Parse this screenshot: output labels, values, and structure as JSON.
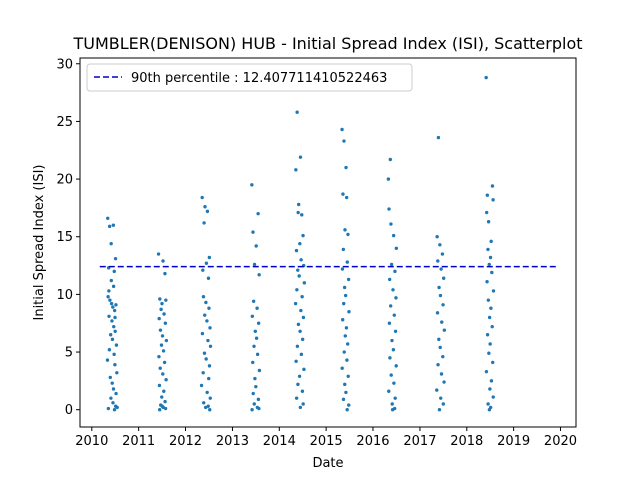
{
  "chart_data": {
    "type": "scatter",
    "title": "TUMBLER(DENISON) HUB - Initial Spread Index (ISI), Scatterplot",
    "xlabel": "Date",
    "ylabel": "Initial Spread Index (ISI)",
    "xlim": [
      "2009-10-01",
      "2020-05-01"
    ],
    "ylim": [
      -1.5,
      30.5
    ],
    "x_ticks": [
      "2010",
      "2011",
      "2012",
      "2013",
      "2014",
      "2015",
      "2016",
      "2017",
      "2018",
      "2019",
      "2020"
    ],
    "y_ticks": [
      "0",
      "5",
      "10",
      "15",
      "20",
      "25",
      "30"
    ],
    "grid": false,
    "legend_position": "top-left",
    "percentile_line": {
      "label": "90th percentile : 12.407711410522463",
      "value": 12.407711410522463,
      "style": "dashed",
      "color": "#0000cc"
    },
    "series": [
      {
        "color": "#1f77b4",
        "points": [
          [
            "2010-05-05",
            16.6
          ],
          [
            "2010-05-20",
            15.9
          ],
          [
            "2010-06-01",
            14.4
          ],
          [
            "2010-06-18",
            16.0
          ],
          [
            "2010-07-05",
            13.1
          ],
          [
            "2010-05-12",
            12.3
          ],
          [
            "2010-06-25",
            12.0
          ],
          [
            "2010-05-08",
            9.8
          ],
          [
            "2010-05-22",
            9.5
          ],
          [
            "2010-06-04",
            9.2
          ],
          [
            "2010-06-14",
            8.9
          ],
          [
            "2010-06-28",
            8.6
          ],
          [
            "2010-07-08",
            9.1
          ],
          [
            "2010-05-15",
            8.1
          ],
          [
            "2010-06-07",
            7.7
          ],
          [
            "2010-06-21",
            7.2
          ],
          [
            "2010-07-02",
            6.8
          ],
          [
            "2010-05-28",
            6.5
          ],
          [
            "2010-06-11",
            6.1
          ],
          [
            "2010-07-12",
            5.6
          ],
          [
            "2010-05-18",
            5.2
          ],
          [
            "2010-06-24",
            4.8
          ],
          [
            "2010-05-03",
            4.3
          ],
          [
            "2010-06-30",
            3.9
          ],
          [
            "2010-07-15",
            3.2
          ],
          [
            "2010-05-25",
            2.8
          ],
          [
            "2010-06-09",
            2.3
          ],
          [
            "2010-06-19",
            1.8
          ],
          [
            "2010-07-09",
            1.4
          ],
          [
            "2010-05-30",
            1.0
          ],
          [
            "2010-06-15",
            0.6
          ],
          [
            "2010-07-06",
            0.3
          ],
          [
            "2010-05-10",
            0.1
          ],
          [
            "2010-06-27",
            0.0
          ],
          [
            "2010-07-18",
            0.2
          ],
          [
            "2010-06-02",
            11.2
          ],
          [
            "2010-06-20",
            10.7
          ],
          [
            "2010-05-14",
            10.3
          ],
          [
            "2010-07-01",
            8.0
          ],
          [
            "2011-06-05",
            13.5
          ],
          [
            "2011-07-10",
            12.9
          ],
          [
            "2011-07-25",
            11.8
          ],
          [
            "2011-06-15",
            9.6
          ],
          [
            "2011-07-02",
            9.2
          ],
          [
            "2011-08-01",
            9.5
          ],
          [
            "2011-06-25",
            8.7
          ],
          [
            "2011-07-18",
            8.3
          ],
          [
            "2011-06-10",
            7.9
          ],
          [
            "2011-07-28",
            7.5
          ],
          [
            "2011-06-20",
            6.9
          ],
          [
            "2011-07-06",
            6.4
          ],
          [
            "2011-08-05",
            6.0
          ],
          [
            "2011-06-28",
            5.6
          ],
          [
            "2011-07-14",
            5.1
          ],
          [
            "2011-06-08",
            4.6
          ],
          [
            "2011-07-22",
            4.1
          ],
          [
            "2011-06-18",
            3.6
          ],
          [
            "2011-07-08",
            3.1
          ],
          [
            "2011-08-03",
            2.6
          ],
          [
            "2011-06-12",
            2.1
          ],
          [
            "2011-07-16",
            1.6
          ],
          [
            "2011-06-30",
            1.1
          ],
          [
            "2011-07-26",
            0.7
          ],
          [
            "2011-06-22",
            0.4
          ],
          [
            "2011-07-12",
            0.2
          ],
          [
            "2011-06-14",
            0.0
          ],
          [
            "2011-07-30",
            0.1
          ],
          [
            "2011-07-04",
            0.3
          ],
          [
            "2012-05-10",
            18.4
          ],
          [
            "2012-06-01",
            17.6
          ],
          [
            "2012-06-20",
            17.2
          ],
          [
            "2012-05-25",
            16.2
          ],
          [
            "2012-07-05",
            13.2
          ],
          [
            "2012-06-12",
            12.7
          ],
          [
            "2012-05-15",
            12.1
          ],
          [
            "2012-06-28",
            11.4
          ],
          [
            "2012-05-20",
            9.8
          ],
          [
            "2012-06-08",
            9.3
          ],
          [
            "2012-07-02",
            8.8
          ],
          [
            "2012-05-30",
            8.2
          ],
          [
            "2012-06-16",
            7.7
          ],
          [
            "2012-07-10",
            7.1
          ],
          [
            "2012-05-12",
            6.6
          ],
          [
            "2012-06-24",
            6.0
          ],
          [
            "2012-07-14",
            5.5
          ],
          [
            "2012-05-28",
            4.9
          ],
          [
            "2012-06-10",
            4.4
          ],
          [
            "2012-07-06",
            3.8
          ],
          [
            "2012-05-18",
            3.2
          ],
          [
            "2012-06-30",
            2.7
          ],
          [
            "2012-05-05",
            2.1
          ],
          [
            "2012-06-18",
            1.5
          ],
          [
            "2012-07-12",
            1.0
          ],
          [
            "2012-05-22",
            0.6
          ],
          [
            "2012-06-06",
            0.2
          ],
          [
            "2012-07-08",
            0.0
          ],
          [
            "2012-06-26",
            0.3
          ],
          [
            "2013-06-01",
            19.5
          ],
          [
            "2013-07-20",
            17.0
          ],
          [
            "2013-06-10",
            15.4
          ],
          [
            "2013-07-05",
            14.2
          ],
          [
            "2013-06-22",
            12.6
          ],
          [
            "2013-07-28",
            11.7
          ],
          [
            "2013-06-15",
            9.4
          ],
          [
            "2013-07-12",
            8.8
          ],
          [
            "2013-06-05",
            8.1
          ],
          [
            "2013-07-24",
            7.5
          ],
          [
            "2013-06-28",
            6.8
          ],
          [
            "2013-07-08",
            6.2
          ],
          [
            "2013-06-18",
            5.5
          ],
          [
            "2013-07-16",
            4.8
          ],
          [
            "2013-06-08",
            4.1
          ],
          [
            "2013-07-30",
            3.4
          ],
          [
            "2013-06-25",
            2.7
          ],
          [
            "2013-07-02",
            2.0
          ],
          [
            "2013-06-12",
            1.4
          ],
          [
            "2013-07-22",
            0.9
          ],
          [
            "2013-06-20",
            0.5
          ],
          [
            "2013-07-14",
            0.2
          ],
          [
            "2013-06-03",
            0.0
          ],
          [
            "2013-07-26",
            0.1
          ],
          [
            "2014-05-20",
            25.8
          ],
          [
            "2014-06-15",
            21.9
          ],
          [
            "2014-05-10",
            20.8
          ],
          [
            "2014-06-01",
            17.8
          ],
          [
            "2014-05-28",
            17.1
          ],
          [
            "2014-06-25",
            16.9
          ],
          [
            "2014-07-05",
            15.1
          ],
          [
            "2014-06-10",
            14.4
          ],
          [
            "2014-05-15",
            13.8
          ],
          [
            "2014-06-20",
            13.0
          ],
          [
            "2014-07-10",
            12.5
          ],
          [
            "2014-05-25",
            12.1
          ],
          [
            "2014-06-05",
            11.6
          ],
          [
            "2014-07-15",
            11.0
          ],
          [
            "2014-05-18",
            10.4
          ],
          [
            "2014-06-28",
            9.8
          ],
          [
            "2014-05-08",
            9.2
          ],
          [
            "2014-06-18",
            8.6
          ],
          [
            "2014-07-08",
            8.0
          ],
          [
            "2014-05-30",
            7.4
          ],
          [
            "2014-06-12",
            6.8
          ],
          [
            "2014-07-02",
            6.1
          ],
          [
            "2014-05-22",
            5.5
          ],
          [
            "2014-06-22",
            4.8
          ],
          [
            "2014-05-12",
            4.2
          ],
          [
            "2014-07-12",
            3.5
          ],
          [
            "2014-06-08",
            2.9
          ],
          [
            "2014-05-26",
            2.2
          ],
          [
            "2014-06-30",
            1.6
          ],
          [
            "2014-05-16",
            1.0
          ],
          [
            "2014-07-06",
            0.5
          ],
          [
            "2014-06-14",
            0.2
          ],
          [
            "2015-05-05",
            24.3
          ],
          [
            "2015-05-20",
            23.3
          ],
          [
            "2015-06-05",
            21.0
          ],
          [
            "2015-05-12",
            18.7
          ],
          [
            "2015-06-10",
            18.4
          ],
          [
            "2015-05-28",
            15.6
          ],
          [
            "2015-06-20",
            15.2
          ],
          [
            "2015-05-15",
            13.9
          ],
          [
            "2015-06-15",
            12.8
          ],
          [
            "2015-05-08",
            12.2
          ],
          [
            "2015-06-25",
            11.3
          ],
          [
            "2015-05-25",
            10.6
          ],
          [
            "2015-06-02",
            9.9
          ],
          [
            "2015-05-18",
            9.2
          ],
          [
            "2015-06-28",
            8.5
          ],
          [
            "2015-05-10",
            7.8
          ],
          [
            "2015-06-08",
            7.1
          ],
          [
            "2015-05-30",
            6.4
          ],
          [
            "2015-06-18",
            5.7
          ],
          [
            "2015-05-22",
            5.0
          ],
          [
            "2015-06-12",
            4.3
          ],
          [
            "2015-05-06",
            3.6
          ],
          [
            "2015-06-22",
            2.9
          ],
          [
            "2015-05-26",
            2.2
          ],
          [
            "2015-06-04",
            1.5
          ],
          [
            "2015-05-16",
            0.9
          ],
          [
            "2015-06-26",
            0.4
          ],
          [
            "2015-06-14",
            0.0
          ],
          [
            "2016-05-15",
            21.7
          ],
          [
            "2016-04-30",
            20.0
          ],
          [
            "2016-05-05",
            17.4
          ],
          [
            "2016-05-20",
            16.1
          ],
          [
            "2016-06-10",
            15.1
          ],
          [
            "2016-07-01",
            14.0
          ],
          [
            "2016-05-25",
            12.6
          ],
          [
            "2016-06-20",
            12.0
          ],
          [
            "2016-05-10",
            11.3
          ],
          [
            "2016-06-05",
            10.4
          ],
          [
            "2016-06-28",
            9.7
          ],
          [
            "2016-05-18",
            9.0
          ],
          [
            "2016-06-15",
            8.2
          ],
          [
            "2016-05-08",
            7.5
          ],
          [
            "2016-06-25",
            6.8
          ],
          [
            "2016-05-28",
            6.0
          ],
          [
            "2016-06-08",
            5.2
          ],
          [
            "2016-05-12",
            4.5
          ],
          [
            "2016-06-30",
            3.8
          ],
          [
            "2016-05-22",
            3.0
          ],
          [
            "2016-06-12",
            2.3
          ],
          [
            "2016-05-03",
            1.6
          ],
          [
            "2016-06-22",
            1.0
          ],
          [
            "2016-05-30",
            0.5
          ],
          [
            "2016-06-18",
            0.1
          ],
          [
            "2016-06-02",
            0.0
          ],
          [
            "2017-05-25",
            23.6
          ],
          [
            "2017-05-15",
            15.0
          ],
          [
            "2017-06-05",
            14.3
          ],
          [
            "2017-06-25",
            13.5
          ],
          [
            "2017-05-20",
            12.9
          ],
          [
            "2017-06-15",
            12.2
          ],
          [
            "2017-07-05",
            11.4
          ],
          [
            "2017-05-30",
            10.6
          ],
          [
            "2017-06-10",
            9.9
          ],
          [
            "2017-06-30",
            9.1
          ],
          [
            "2017-05-18",
            8.4
          ],
          [
            "2017-06-20",
            7.6
          ],
          [
            "2017-07-10",
            6.9
          ],
          [
            "2017-05-28",
            6.1
          ],
          [
            "2017-06-08",
            5.4
          ],
          [
            "2017-06-28",
            4.6
          ],
          [
            "2017-05-22",
            3.9
          ],
          [
            "2017-06-18",
            3.1
          ],
          [
            "2017-07-08",
            2.4
          ],
          [
            "2017-05-12",
            1.7
          ],
          [
            "2017-06-12",
            1.0
          ],
          [
            "2017-07-02",
            0.5
          ],
          [
            "2017-06-02",
            0.0
          ],
          [
            "2018-06-01",
            28.8
          ],
          [
            "2018-07-20",
            19.4
          ],
          [
            "2018-06-10",
            18.6
          ],
          [
            "2018-07-25",
            18.2
          ],
          [
            "2018-06-05",
            17.1
          ],
          [
            "2018-06-20",
            16.3
          ],
          [
            "2018-07-10",
            14.6
          ],
          [
            "2018-06-15",
            13.9
          ],
          [
            "2018-07-05",
            13.2
          ],
          [
            "2018-06-25",
            12.6
          ],
          [
            "2018-07-15",
            11.9
          ],
          [
            "2018-06-08",
            11.1
          ],
          [
            "2018-07-28",
            10.3
          ],
          [
            "2018-06-18",
            9.5
          ],
          [
            "2018-07-08",
            8.8
          ],
          [
            "2018-06-28",
            8.0
          ],
          [
            "2018-07-18",
            7.2
          ],
          [
            "2018-06-12",
            6.5
          ],
          [
            "2018-07-02",
            5.7
          ],
          [
            "2018-06-22",
            4.9
          ],
          [
            "2018-07-22",
            4.1
          ],
          [
            "2018-06-03",
            3.3
          ],
          [
            "2018-07-12",
            2.5
          ],
          [
            "2018-06-30",
            1.8
          ],
          [
            "2018-07-26",
            1.1
          ],
          [
            "2018-06-16",
            0.5
          ],
          [
            "2018-07-06",
            0.2
          ],
          [
            "2018-06-26",
            0.0
          ]
        ]
      }
    ]
  }
}
